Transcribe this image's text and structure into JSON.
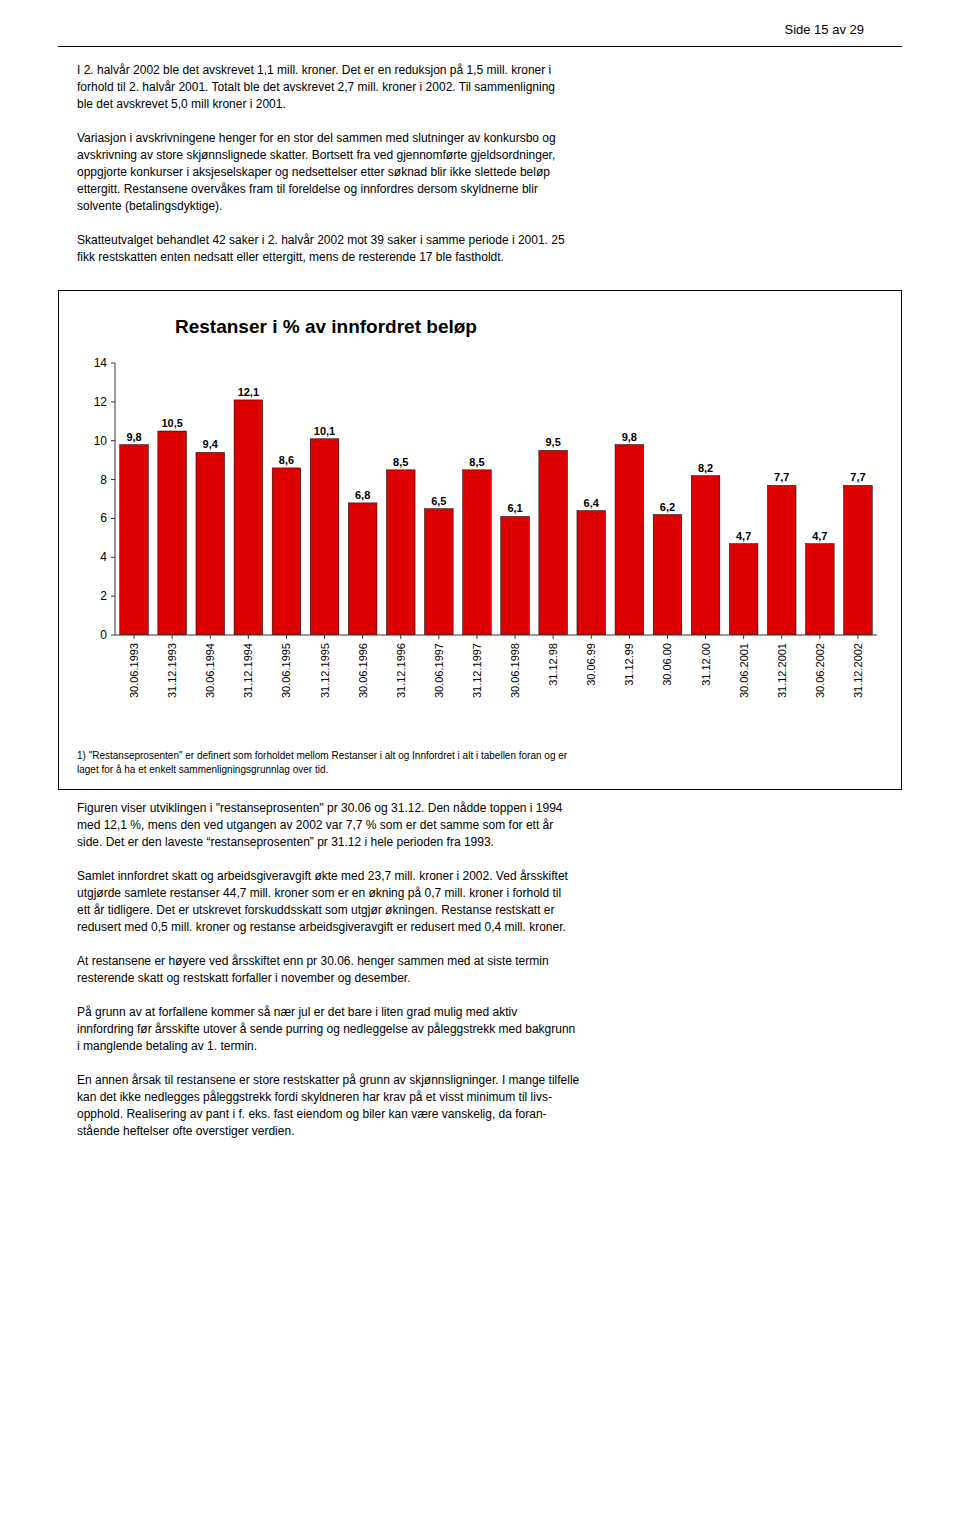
{
  "chart_data": {
    "type": "bar",
    "title": "Restanser i % av innfordret beløp",
    "categories": [
      "30.06.1993",
      "31.12.1993",
      "30.06.1994",
      "31.12.1994",
      "30.06.1995",
      "31.12.1995",
      "30.06.1996",
      "31.12.1996",
      "30.06.1997",
      "31.12.1997",
      "30.06.1998",
      "31.12.98",
      "30.06.99",
      "31.12.99",
      "30.06.00",
      "31.12.00",
      "30.06.2001",
      "31.12.2001",
      "30.06.2002",
      "31.12.2002"
    ],
    "values": [
      9.8,
      10.5,
      9.4,
      12.1,
      8.6,
      10.1,
      6.8,
      8.5,
      6.5,
      8.5,
      6.1,
      9.5,
      6.4,
      9.8,
      6.2,
      8.2,
      4.7,
      7.7,
      4.7,
      7.7
    ],
    "value_labels": [
      "9,8",
      "10,5",
      "9,4",
      "12,1",
      "8,6",
      "10,1",
      "6,8",
      "8,5",
      "6,5",
      "8,5",
      "6,1",
      "9,5",
      "6,4",
      "9,8",
      "6,2",
      "8,2",
      "4,7",
      "7,7",
      "4,7",
      "7,7"
    ],
    "data_labels": true,
    "color": "#dd0000",
    "ylim": [
      0,
      14
    ],
    "yticks": [
      0,
      2,
      4,
      6,
      8,
      10,
      12,
      14
    ],
    "grid": false
  },
  "page_header": "Side 15 av 29",
  "body_text_before": "I 2. halvår 2002 ble det avskrevet 1,1 mill. kroner. Det er en reduksjon på 1,5 mill. kroner i\nforhold til 2. halvår 2001. Totalt ble det avskrevet 2,7 mill. kroner i 2002. Til sammenligning\nble det avskrevet 5,0 mill kroner i 2001.\n\nVariasjon i avskrivningene henger for en stor del sammen med slutninger av konkursbo og\navskrivning av store skjønnslignede skatter. Bortsett fra ved gjennomførte gjeldsordninger,\noppgjorte konkurser i aksjeselskaper og nedsettelser etter søknad blir ikke slettede beløp\nettergitt. Restansene overvåkes fram til foreldelse og innfordres dersom skyldnerne blir\nsolvente (betalingsdyktige).\n\nSkatteutvalget behandlet 42 saker i 2. halvår 2002 mot 39 saker i samme periode i 2001. 25\nfikk restskatten enten nedsatt eller ettergitt, mens de resterende 17 ble fastholdt.",
  "footnote": "1) \"Restanseprosenten\" er definert som forholdet mellom Restanser i alt og Innfordret i alt i tabellen foran og er\nlaget for å ha et enkelt sammenligningsgrunnlag over tid.",
  "body_text_after": "Figuren viser utviklingen i \"restanseprosenten\" pr 30.06 og 31.12. Den nådde toppen i 1994\nmed 12,1 %, mens den ved utgangen av 2002 var 7,7 % som er det samme som for ett år\nside. Det er den laveste “restanseprosenten” pr 31.12 i hele perioden fra 1993.\n\nSamlet innfordret skatt og arbeidsgiveravgift økte med 23,7 mill. kroner i 2002. Ved årsskiftet\nutgjørde samlete restanser 44,7 mill. kroner som er en økning på 0,7 mill. kroner i forhold til\nett år tidligere. Det er utskrevet forskuddsskatt som utgjør økningen. Restanse restskatt er\nredusert med 0,5 mill. kroner og restanse arbeidsgiveravgift er redusert med 0,4 mill. kroner.\n\nAt restansene er høyere ved årsskiftet enn pr 30.06. henger sammen med at siste termin\nresterende skatt og restskatt forfaller i november og desember.\n\nPå grunn av at forfallene kommer så nær jul er det bare i liten grad mulig med aktiv\ninnfordring før årsskifte utover å sende purring og nedleggelse av påleggstrekk med bakgrunn\ni manglende betaling av 1. termin.\n\nEn annen årsak til restansene er store restskatter på grunn av skjønnsligninger. I mange tilfelle\nkan det ikke nedlegges påleggstrekk fordi skyldneren har krav på et visst minimum til livs-\nopphold. Realisering av pant i f. eks. fast eiendom og biler kan være vanskelig, da foran-\nstående heftelser ofte overstiger verdien."
}
